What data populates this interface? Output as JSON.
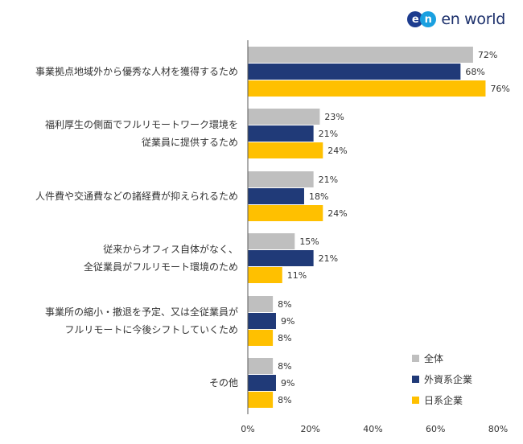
{
  "logo": {
    "mark_left": "e",
    "mark_right": "n",
    "wordmark": "en world"
  },
  "chart_data": {
    "type": "bar",
    "orientation": "horizontal",
    "categories": [
      [
        "事業拠点地域外から優秀な人材を獲得するため"
      ],
      [
        "福利厚生の側面でフルリモートワーク環境を",
        "従業員に提供するため"
      ],
      [
        "人件費や交通費などの諸経費が抑えられるため"
      ],
      [
        "従来からオフィス自体がなく、",
        "全従業員がフルリモート環境のため"
      ],
      [
        "事業所の縮小・撤退を予定、又は全従業員が",
        "フルリモートに今後シフトしていくため"
      ],
      [
        "その他"
      ]
    ],
    "series": [
      {
        "name": "全体",
        "color": "#bfbfbf",
        "values": [
          72,
          23,
          21,
          15,
          8,
          8
        ]
      },
      {
        "name": "外資系企業",
        "color": "#203a78",
        "values": [
          68,
          21,
          18,
          21,
          9,
          9
        ]
      },
      {
        "name": "日系企業",
        "color": "#ffc000",
        "values": [
          76,
          24,
          24,
          11,
          8,
          8
        ]
      }
    ],
    "value_suffix": "%",
    "xlim": [
      0,
      80
    ],
    "xticks": [
      "0%",
      "20%",
      "40%",
      "60%",
      "80%"
    ],
    "grid": false,
    "legend_position": "bottom-right"
  }
}
